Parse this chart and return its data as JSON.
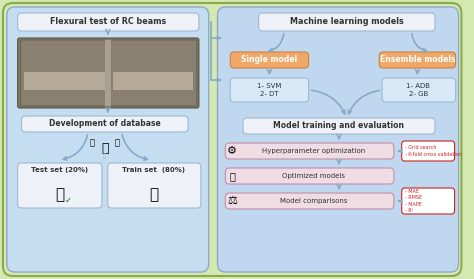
{
  "outer_bg": "#d5e8b2",
  "left_panel_bg": "#c5ddf0",
  "right_panel_bg": "#c0d8ef",
  "orange_box_color": "#f0a868",
  "light_blue_box": "#d8eaf8",
  "white_box": "#f8f4f4",
  "pink_box": "#f0dce4",
  "red_text": "#cc2222",
  "dark_text": "#333333",
  "arrow_color": "#88aac8",
  "box_edge": "#a0b8d0",
  "title": "Flexural test of RC beams",
  "right_title": "Machine learning models",
  "left_box2": "Development of database",
  "test_set": "Test set (20%)",
  "train_set": "Train set  (80%)",
  "single_model": "Single model",
  "ensemble_models": "Ensemble models",
  "single_items": "1- SVM\n2- DT",
  "ensemble_items": "1- ADB\n2- GB",
  "training": "Model training and evaluation",
  "hyper": "Hyperparameter optimization",
  "optimized": "Optimized models",
  "comparisons": "Model comparisons",
  "grid_text": "- Grid search\n- K-fold cross validation",
  "metrics_text": "- MAE\n- RMSE\n- MAPE\n- R²"
}
